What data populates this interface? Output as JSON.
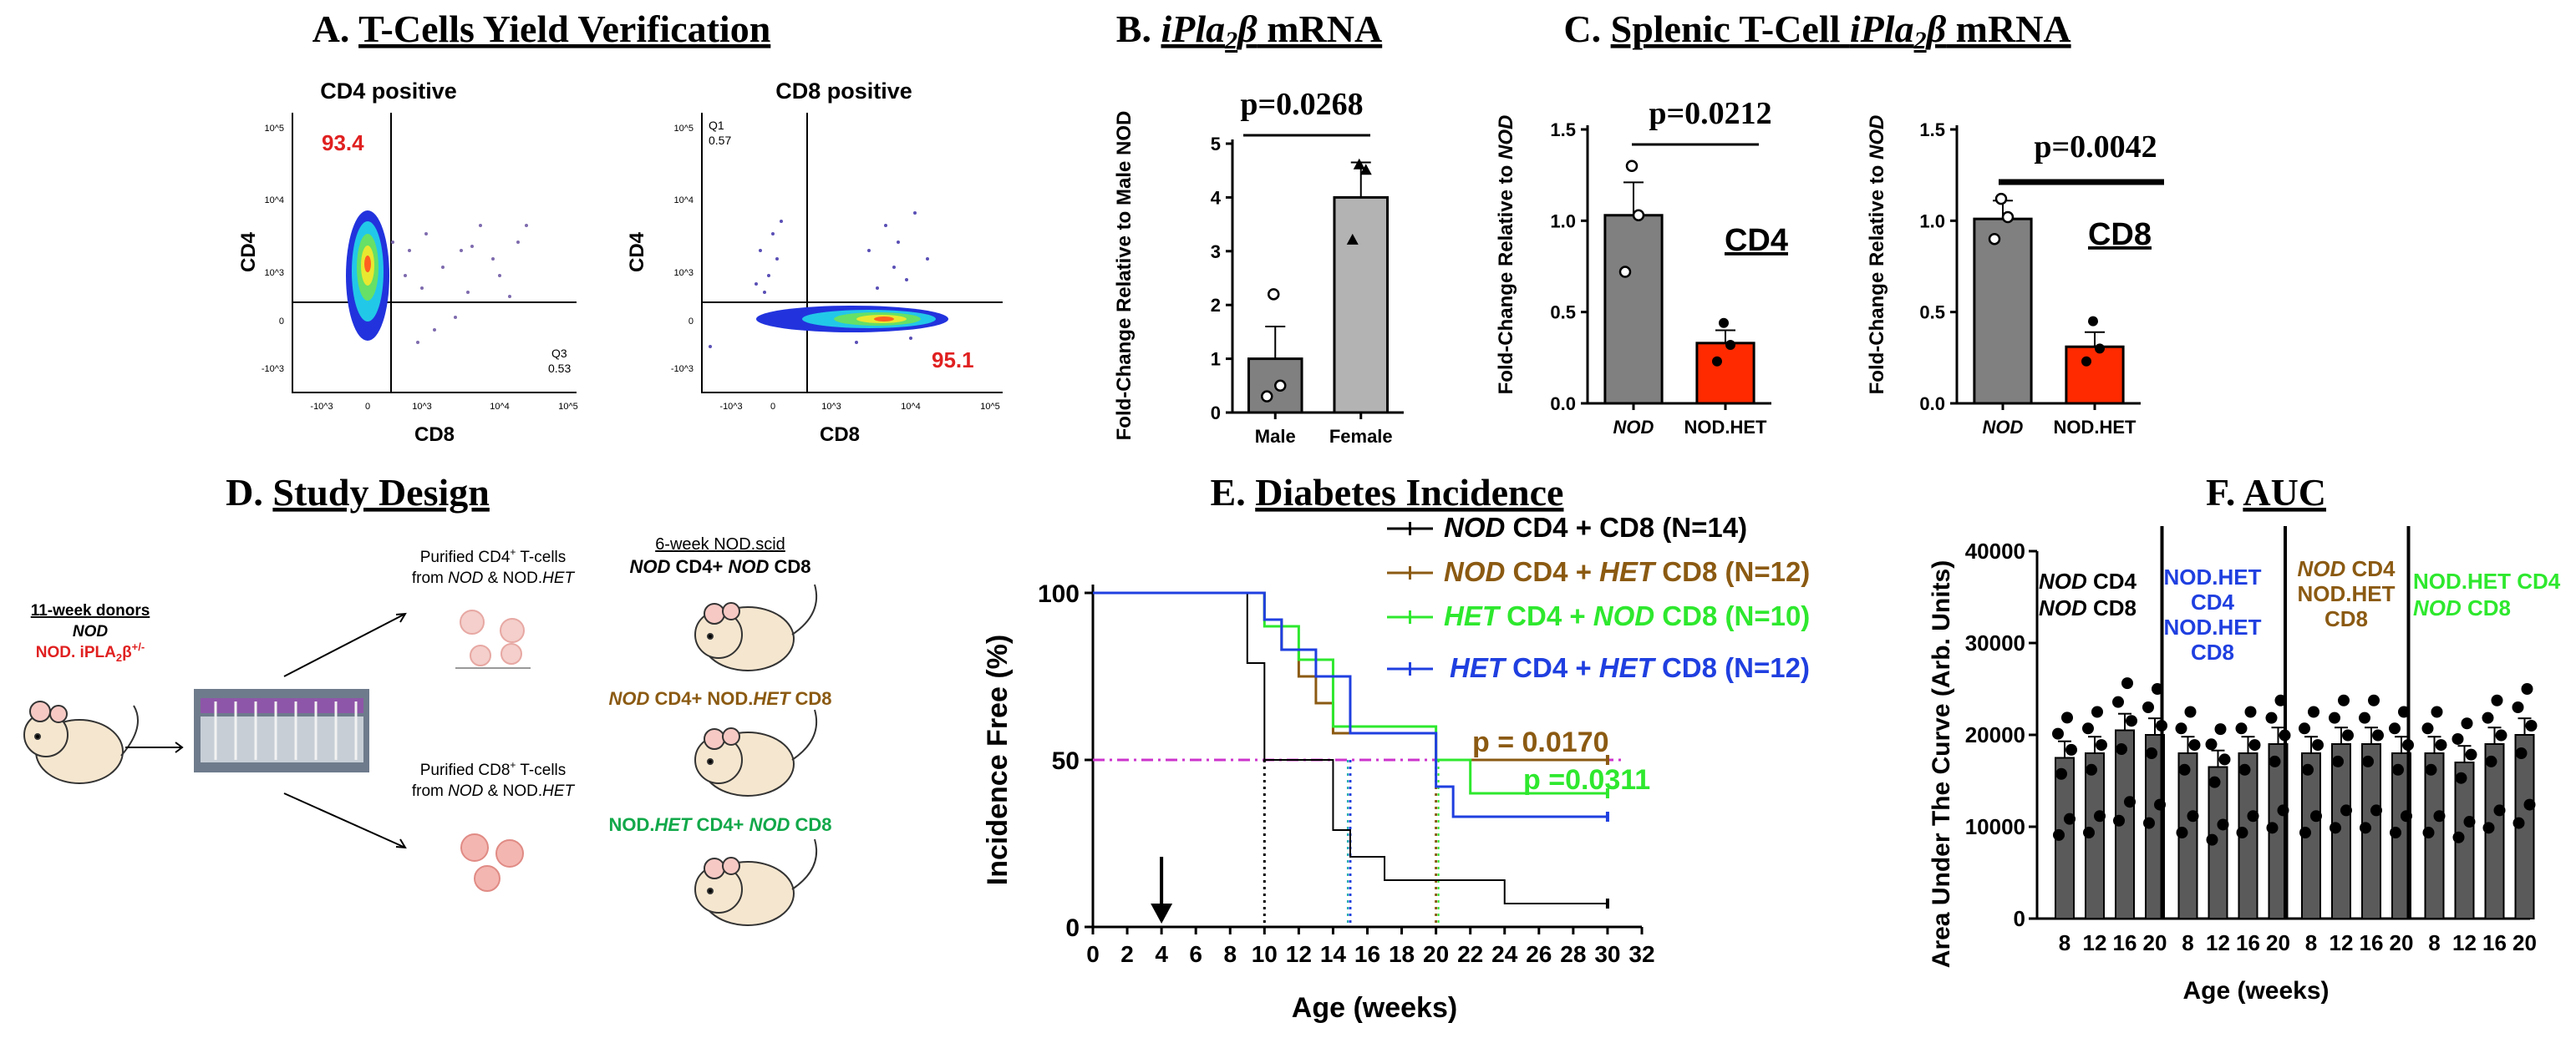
{
  "panelA": {
    "letter": "A.",
    "title": "T-Cells Yield Verification",
    "cd4": {
      "subtitle": "CD4 positive",
      "xlabel": "CD8",
      "ylabel": "CD4",
      "pct_big": "93.4",
      "q3_label": "Q3",
      "q3_value": "0.53"
    },
    "cd8": {
      "subtitle": "CD8 positive",
      "xlabel": "CD8",
      "ylabel": "CD4",
      "pct_big": "95.1",
      "q1_label": "Q1",
      "q1_value": "0.57"
    },
    "tick_y": [
      "10^5",
      "10^4",
      "10^3",
      "0",
      "-10^3"
    ],
    "tick_x": [
      "-10^3",
      "0",
      "10^3",
      "10^4",
      "10^5"
    ]
  },
  "panelB": {
    "letter": "B.",
    "title_a": "iPla",
    "title_sub": "2",
    "title_b": "β",
    "title_c": " mRNA",
    "ylabel": "Fold-Change Relative to Male NOD",
    "pvalue": "p=0.0268"
  },
  "panelC": {
    "letter": "C.",
    "title_a": "Splenic T-Cell ",
    "title_b": "iPla",
    "title_sub": "2",
    "title_c": "β",
    "title_d": " mRNA",
    "ylabel_a": "Fold-Change Relative to ",
    "ylabel_b": "NOD",
    "cd4": {
      "pvalue": "p=0.0212",
      "label": "CD4"
    },
    "cd8": {
      "pvalue": "p=0.0042",
      "label": "CD8"
    }
  },
  "panelD": {
    "letter": "D.",
    "title": "Study Design",
    "donors_title": "11-week donors",
    "donor1": "NOD",
    "donor2": "NOD. iPLA",
    "donor2_sub": "2",
    "donor2_b": "β",
    "donor2_sup": "+/-",
    "cd4_text1": "Purified CD4",
    "cd4_sup": "+",
    "cd4_text2": " T-cells",
    "cd4_from_a": "from ",
    "cd4_from_b": "NOD",
    "cd4_from_c": " & NOD.",
    "cd4_from_d": "HET",
    "cd8_text1": "Purified CD8",
    "cd8_sup": "+",
    "cd8_text2": " T-cells",
    "cd8_from_a": "from ",
    "cd8_from_b": "NOD",
    "cd8_from_c": " & NOD.",
    "cd8_from_d": "HET",
    "recip_title": "6-week NOD.scid",
    "g1_a": "NOD",
    "g1_b": " CD4+ ",
    "g1_c": "NOD",
    "g1_d": " CD8",
    "g2_a": "NOD",
    "g2_b": " CD4+ NOD.",
    "g2_c": "HET",
    "g2_d": " CD8",
    "g3_a": "NOD.",
    "g3_b": "HET",
    "g3_c": " CD4+ ",
    "g3_d": "NOD",
    "g3_e": " CD8"
  },
  "panelE": {
    "letter": "E.",
    "title": "Diabetes Incidence",
    "ylabel": "Incidence Free (%)",
    "xlabel": "Age (weeks)",
    "p1": "p = 0.0170",
    "p2": "p =0.0311",
    "legend": [
      {
        "a": "NOD",
        "b": " CD4 + CD8 (N=14)",
        "color": "#000000"
      },
      {
        "a": "NOD",
        "b": " CD4 + ",
        "c": "HET",
        "d": " CD8 (N=12)",
        "color": "#8B5A12"
      },
      {
        "a": "HET",
        "b": " CD4 + ",
        "c": "NOD",
        "d": " CD8 (N=10)",
        "color": "#2EE82E"
      },
      {
        "a": "HET",
        "b": " CD4 + ",
        "c": "HET",
        "d": " CD8 (N=12)",
        "color": "#1F3FE0"
      }
    ]
  },
  "panelF": {
    "letter": "F.",
    "title": "AUC",
    "ylabel": "Area Under The Curve (Arb. Units)",
    "xlabel": "Age (weeks)",
    "g1": [
      "NOD",
      " CD4",
      "NOD",
      " CD8"
    ],
    "g2": [
      "NOD.HET",
      "CD4",
      "NOD.HET",
      "CD8"
    ],
    "g3": [
      "NOD",
      " CD4",
      "NOD.HET",
      "CD8"
    ],
    "g4": [
      "NOD.HET",
      " CD4",
      "NOD",
      " CD8"
    ]
  },
  "colors": {
    "red": "#FF2A00",
    "dark_gray": "#808080",
    "light_gray": "#B3B3B3",
    "purple_line": "#CC33CC"
  },
  "chart_data": [
    {
      "type": "bar",
      "title": "iPla2β mRNA",
      "categories": [
        "Male",
        "Female"
      ],
      "values": [
        1.0,
        4.0
      ],
      "errors": [
        0.6,
        0.65
      ],
      "points": [
        [
          0.3,
          0.5,
          2.2
        ],
        [
          3.2,
          4.5,
          4.6
        ]
      ],
      "ylabel": "Fold-Change Relative to Male NOD",
      "ylim": [
        0,
        5
      ],
      "yticks": [
        0,
        1,
        2,
        3,
        4,
        5
      ]
    },
    {
      "type": "bar",
      "title": "Splenic T-Cell iPla2β mRNA (CD4)",
      "categories": [
        "NOD",
        "NOD.HET"
      ],
      "values": [
        1.03,
        0.33
      ],
      "errors": [
        0.18,
        0.07
      ],
      "points": [
        [
          0.72,
          1.03,
          1.3
        ],
        [
          0.23,
          0.32,
          0.44
        ]
      ],
      "ylim": [
        0,
        1.5
      ],
      "yticks": [
        "0.0",
        "0.5",
        "1.0",
        "1.5"
      ]
    },
    {
      "type": "bar",
      "title": "Splenic T-Cell iPla2β mRNA (CD8)",
      "categories": [
        "NOD",
        "NOD.HET"
      ],
      "values": [
        1.01,
        0.31
      ],
      "errors": [
        0.1,
        0.08
      ],
      "points": [
        [
          0.9,
          1.02,
          1.12
        ],
        [
          0.23,
          0.3,
          0.45
        ]
      ],
      "ylim": [
        0,
        1.5
      ],
      "yticks": [
        "0.0",
        "0.5",
        "1.0",
        "1.5"
      ]
    },
    {
      "type": "line",
      "title": "Diabetes Incidence",
      "xlabel": "Age (weeks)",
      "ylabel": "Incidence Free (%)",
      "xlim": [
        0,
        32
      ],
      "ylim": [
        0,
        100
      ],
      "xticks": [
        0,
        2,
        4,
        6,
        8,
        10,
        12,
        14,
        16,
        18,
        20,
        22,
        24,
        26,
        28,
        30,
        32
      ],
      "yticks": [
        0,
        50,
        100
      ],
      "reference_y": 50,
      "arrow_x": 4,
      "series": [
        {
          "name": "NOD CD4 + CD8 (N=14)",
          "color": "#000000",
          "x": [
            0,
            9,
            10,
            14,
            15,
            17,
            20,
            24,
            30
          ],
          "y": [
            100,
            79,
            50,
            29,
            21,
            14,
            14,
            7,
            7
          ]
        },
        {
          "name": "NOD CD4 + HET CD8 (N=12)",
          "color": "#8B5A12",
          "x": [
            0,
            10,
            11,
            12,
            13,
            14,
            20,
            30
          ],
          "y": [
            100,
            92,
            83,
            75,
            67,
            58,
            50,
            50
          ]
        },
        {
          "name": "HET CD4 + NOD CD8 (N=10)",
          "color": "#2EE82E",
          "x": [
            0,
            10,
            12,
            14,
            20,
            22,
            30
          ],
          "y": [
            100,
            90,
            80,
            60,
            50,
            40,
            40
          ]
        },
        {
          "name": "HET CD4 + HET CD8 (N=12)",
          "color": "#1F3FE0",
          "x": [
            0,
            10,
            11,
            13,
            15,
            20,
            21,
            30
          ],
          "y": [
            100,
            92,
            83,
            75,
            58,
            42,
            33,
            33
          ]
        }
      ]
    },
    {
      "type": "bar",
      "title": "AUC",
      "xlabel": "Age (weeks)",
      "ylabel": "Area Under The Curve (Arb. Units)",
      "ylim": [
        0,
        40000
      ],
      "yticks": [
        0,
        10000,
        20000,
        30000,
        40000
      ],
      "categories": [
        "8",
        "12",
        "16",
        "20"
      ],
      "series": [
        {
          "name": "NOD CD4 / NOD CD8",
          "values": [
            17500,
            18000,
            20500,
            20000
          ]
        },
        {
          "name": "NOD.HET CD4 / NOD.HET CD8",
          "values": [
            18000,
            16500,
            18000,
            19000
          ]
        },
        {
          "name": "NOD CD4 / NOD.HET CD8",
          "values": [
            18000,
            19000,
            19000,
            18000
          ]
        },
        {
          "name": "NOD.HET CD4 / NOD CD8",
          "values": [
            18000,
            17000,
            19000,
            20000
          ]
        }
      ]
    }
  ]
}
